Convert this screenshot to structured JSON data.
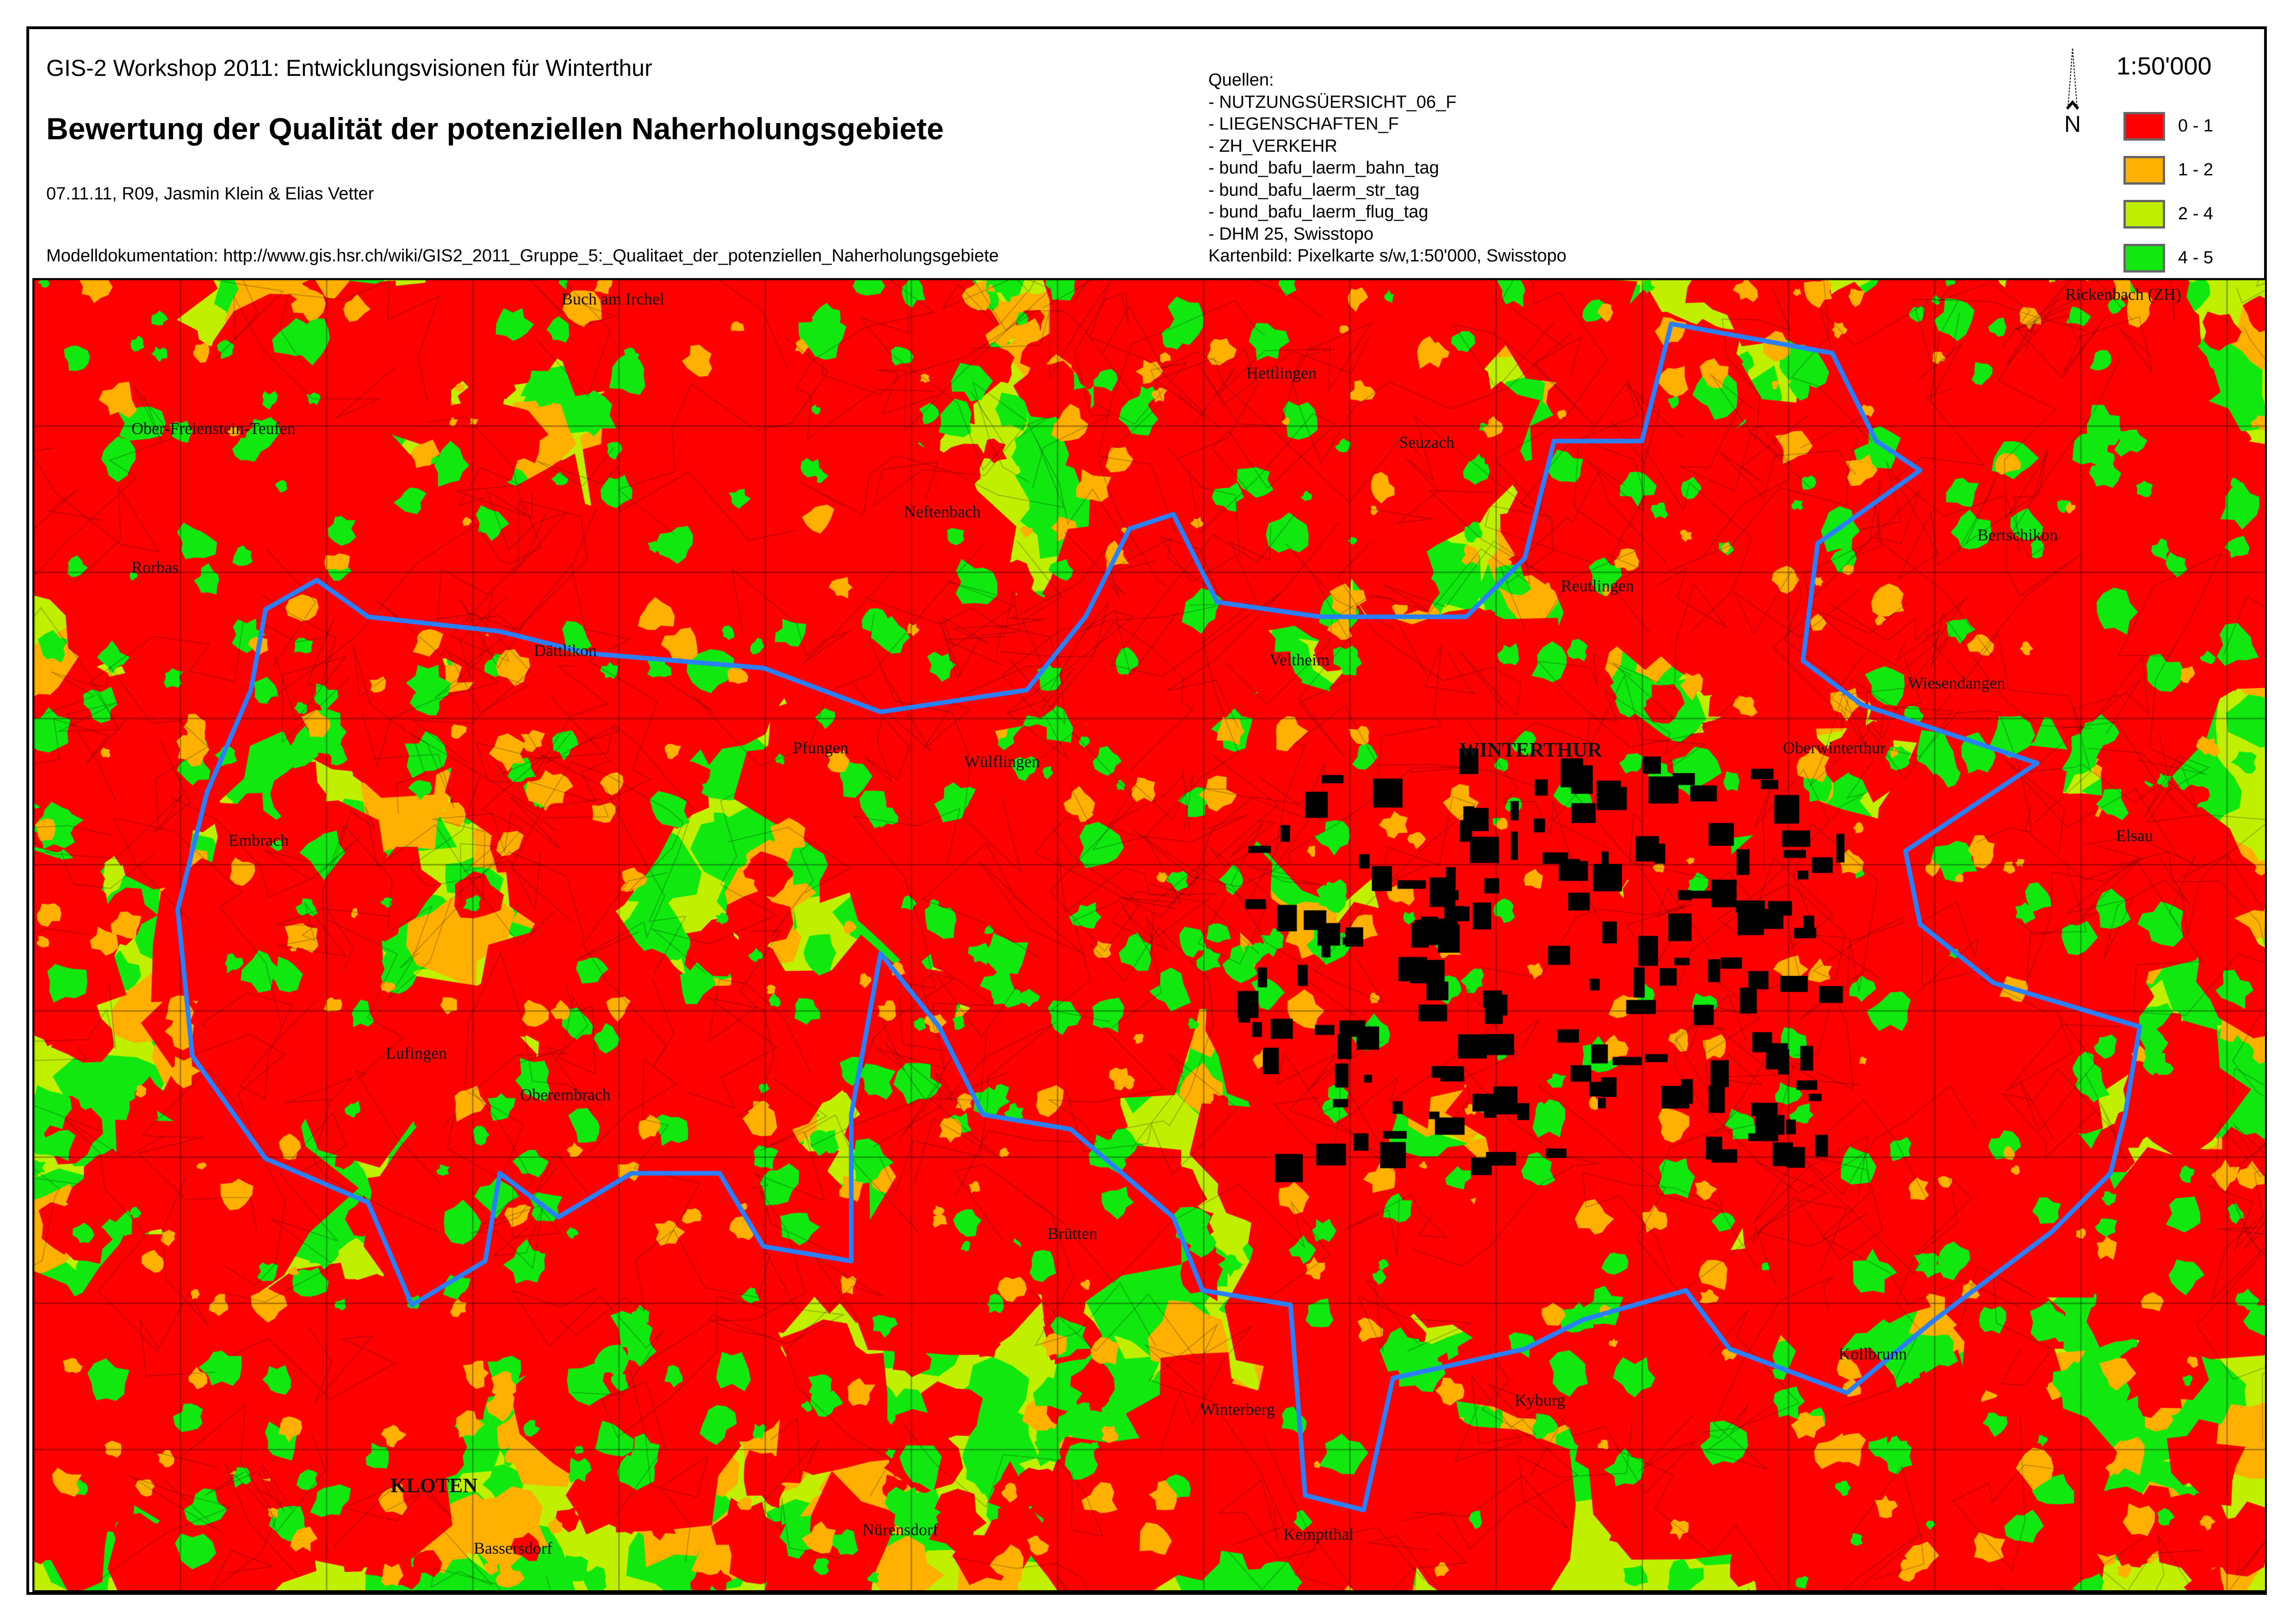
{
  "header": {
    "subtitle": "GIS-2 Workshop 2011: Entwicklungsvisionen für Winterthur",
    "title": "Bewertung der Qualität der potenziellen Naherholungsgebiete",
    "meta": "07.11.11, R09, Jasmin Klein & Elias Vetter",
    "documentation": "Modelldokumentation: http://www.gis.hsr.ch/wiki/GIS2_2011_Gruppe_5:_Qualitaet_der_potenziellen_Naherholungsgebiete"
  },
  "sources": {
    "heading": "Quellen:",
    "items": [
      "- NUTZUNGSÜERSICHT_06_F",
      "- LIEGENSCHAFTEN_F",
      "- ZH_VERKEHR",
      "- bund_bafu_laerm_bahn_tag",
      "- bund_bafu_laerm_str_tag",
      "- bund_bafu_laerm_flug_tag",
      "- DHM 25, Swisstopo"
    ],
    "basemap": "Kartenbild: Pixelkarte s/w,1:50'000, Swisstopo"
  },
  "scale": "1:50'000",
  "north_label": "N",
  "north_icon": "north-arrow-icon",
  "legend": [
    {
      "label": "0 - 1",
      "color": "#ff0000"
    },
    {
      "label": "1 - 2",
      "color": "#ffb000"
    },
    {
      "label": "2 - 4",
      "color": "#c0f000"
    },
    {
      "label": "4 - 5",
      "color": "#10e810"
    }
  ],
  "map": {
    "boundary_color": "#2a7fff",
    "places": [
      "WINTERTHUR",
      "Embrach",
      "Neftenbach",
      "Seuzach",
      "Hettlingen",
      "Wiesendangen",
      "Oberwinterthur",
      "Elsau",
      "Rorbas",
      "Dättlikon",
      "Pfungen",
      "Wülflingen",
      "Lufingen",
      "Oberembrach",
      "Brütten",
      "Kyburg",
      "Kollbrunn",
      "KLOTEN",
      "Bassersdorf",
      "Nürensdorf",
      "Winterberg",
      "Kemptthal",
      "Reutlingen",
      "Veltheim",
      "Rickenbach (ZH)",
      "Bertschikon",
      "Buch am Irchel",
      "Ober-Freienstein-Teufen"
    ]
  }
}
